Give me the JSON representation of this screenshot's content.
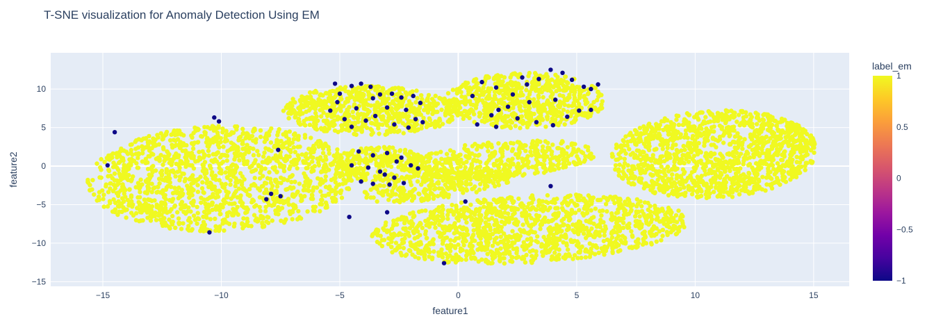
{
  "chart_data": {
    "type": "scatter",
    "title": "T-SNE visualization for Anomaly Detection Using EM",
    "xlabel": "feature1",
    "ylabel": "feature2",
    "xlim": [
      -17.2,
      16.5
    ],
    "ylim": [
      -15.6,
      14.7
    ],
    "x_ticks": [
      -15,
      -10,
      -5,
      0,
      5,
      10,
      15
    ],
    "x_tick_labels": [
      "−15",
      "−10",
      "−5",
      "0",
      "5",
      "10",
      "15"
    ],
    "y_ticks": [
      -15,
      -10,
      -5,
      0,
      5,
      10
    ],
    "y_tick_labels": [
      "−15",
      "−10",
      "−5",
      "0",
      "5",
      "10"
    ],
    "grid": true,
    "colorbar": {
      "title": "label_em",
      "range": [
        -1,
        1
      ],
      "ticks": [
        1,
        0.5,
        0,
        -0.5,
        -1
      ],
      "tick_labels": [
        "1",
        "0.5",
        "0",
        "−0.5",
        "−1"
      ],
      "colorscale": [
        "#0d0887",
        "#46039f",
        "#7201a8",
        "#9c179e",
        "#bd3786",
        "#d8576b",
        "#ed7953",
        "#fb9f3a",
        "#fdca26",
        "#f0f921"
      ]
    },
    "colors": {
      "inlier": "#f0f921",
      "anomaly": "#0d0887",
      "plot_background": "#e5ecf6",
      "gridline": "#ffffff",
      "text": "#2a3f5f"
    },
    "series": [
      {
        "label_em": 1,
        "clusters": [
          {
            "cx": -10.0,
            "cy": -1.6,
            "rx": 5.6,
            "ry": 6.9,
            "n": 1400,
            "rot": -10
          },
          {
            "cx": -3.7,
            "cy": 7.2,
            "rx": 3.7,
            "ry": 3.2,
            "n": 650,
            "rot": -5
          },
          {
            "cx": 2.8,
            "cy": 8.5,
            "rx": 3.4,
            "ry": 3.6,
            "n": 650,
            "rot": -5
          },
          {
            "cx": -3.3,
            "cy": 0.2,
            "rx": 2.0,
            "ry": 2.3,
            "n": 260,
            "rot": 0
          },
          {
            "cx": 10.8,
            "cy": 1.5,
            "rx": 4.3,
            "ry": 5.8,
            "n": 1300,
            "rot": -10
          },
          {
            "cx": 3.0,
            "cy": -8.2,
            "rx": 6.8,
            "ry": 4.3,
            "n": 1250,
            "rot": 15
          },
          {
            "cx": 1.7,
            "cy": 0.8,
            "rx": 4.3,
            "ry": 2.3,
            "n": 450,
            "rot": 18
          },
          {
            "cx": -0.8,
            "cy": -2.5,
            "rx": 3.6,
            "ry": 1.6,
            "n": 280,
            "rot": 28
          }
        ]
      },
      {
        "label_em": -1,
        "points": [
          [
            -5.2,
            10.7
          ],
          [
            -4.5,
            10.4
          ],
          [
            -4.1,
            10.7
          ],
          [
            -3.7,
            10.3
          ],
          [
            -3.3,
            9.3
          ],
          [
            -2.8,
            9.4
          ],
          [
            -2.4,
            8.9
          ],
          [
            -1.9,
            9.1
          ],
          [
            -5.1,
            8.3
          ],
          [
            -5.4,
            7.2
          ],
          [
            -4.8,
            6.1
          ],
          [
            -4.3,
            7.5
          ],
          [
            -3.9,
            5.9
          ],
          [
            -3.5,
            6.5
          ],
          [
            -3.0,
            7.6
          ],
          [
            -2.7,
            5.4
          ],
          [
            -2.2,
            7.3
          ],
          [
            -1.8,
            6.1
          ],
          [
            -1.5,
            5.7
          ],
          [
            -2.1,
            5.0
          ],
          [
            -4.5,
            5.1
          ],
          [
            -3.6,
            8.8
          ],
          [
            -5.0,
            9.4
          ],
          [
            -1.6,
            8.2
          ],
          [
            1.0,
            10.9
          ],
          [
            1.6,
            10.2
          ],
          [
            2.3,
            9.3
          ],
          [
            2.9,
            10.6
          ],
          [
            3.4,
            11.3
          ],
          [
            3.9,
            12.5
          ],
          [
            4.4,
            12.1
          ],
          [
            4.8,
            11.2
          ],
          [
            5.3,
            10.3
          ],
          [
            5.9,
            10.6
          ],
          [
            3.0,
            8.3
          ],
          [
            2.1,
            7.7
          ],
          [
            1.4,
            6.6
          ],
          [
            0.8,
            5.4
          ],
          [
            1.6,
            5.1
          ],
          [
            2.5,
            6.2
          ],
          [
            3.3,
            5.7
          ],
          [
            4.0,
            5.3
          ],
          [
            4.6,
            6.4
          ],
          [
            5.1,
            7.2
          ],
          [
            5.6,
            7.3
          ],
          [
            0.6,
            9.1
          ],
          [
            4.1,
            8.6
          ],
          [
            2.7,
            11.5
          ],
          [
            -4.2,
            1.9
          ],
          [
            -3.6,
            1.4
          ],
          [
            -3.0,
            1.7
          ],
          [
            -2.6,
            0.6
          ],
          [
            -2.0,
            0.1
          ],
          [
            -4.5,
            0.1
          ],
          [
            -3.8,
            -0.2
          ],
          [
            -3.3,
            -0.7
          ],
          [
            -2.7,
            -1.5
          ],
          [
            -2.3,
            -2.2
          ],
          [
            -3.6,
            -2.3
          ],
          [
            -2.9,
            -2.4
          ],
          [
            -1.7,
            -0.3
          ],
          [
            -4.1,
            -2.0
          ],
          [
            -2.4,
            1.1
          ],
          [
            -3.1,
            -1.1
          ],
          [
            -14.5,
            4.4
          ],
          [
            -14.8,
            0.1
          ],
          [
            -10.3,
            6.3
          ],
          [
            -10.1,
            5.8
          ],
          [
            -7.6,
            2.1
          ],
          [
            -7.9,
            -3.6
          ],
          [
            -8.1,
            -4.3
          ],
          [
            -7.5,
            -3.9
          ],
          [
            -10.5,
            -8.6
          ],
          [
            -4.6,
            -6.6
          ],
          [
            -3.0,
            -6.0
          ],
          [
            3.9,
            -2.6
          ],
          [
            0.3,
            -4.6
          ],
          [
            -0.6,
            -12.6
          ],
          [
            5.6,
            10.0
          ],
          [
            1.7,
            7.3
          ]
        ]
      }
    ]
  }
}
